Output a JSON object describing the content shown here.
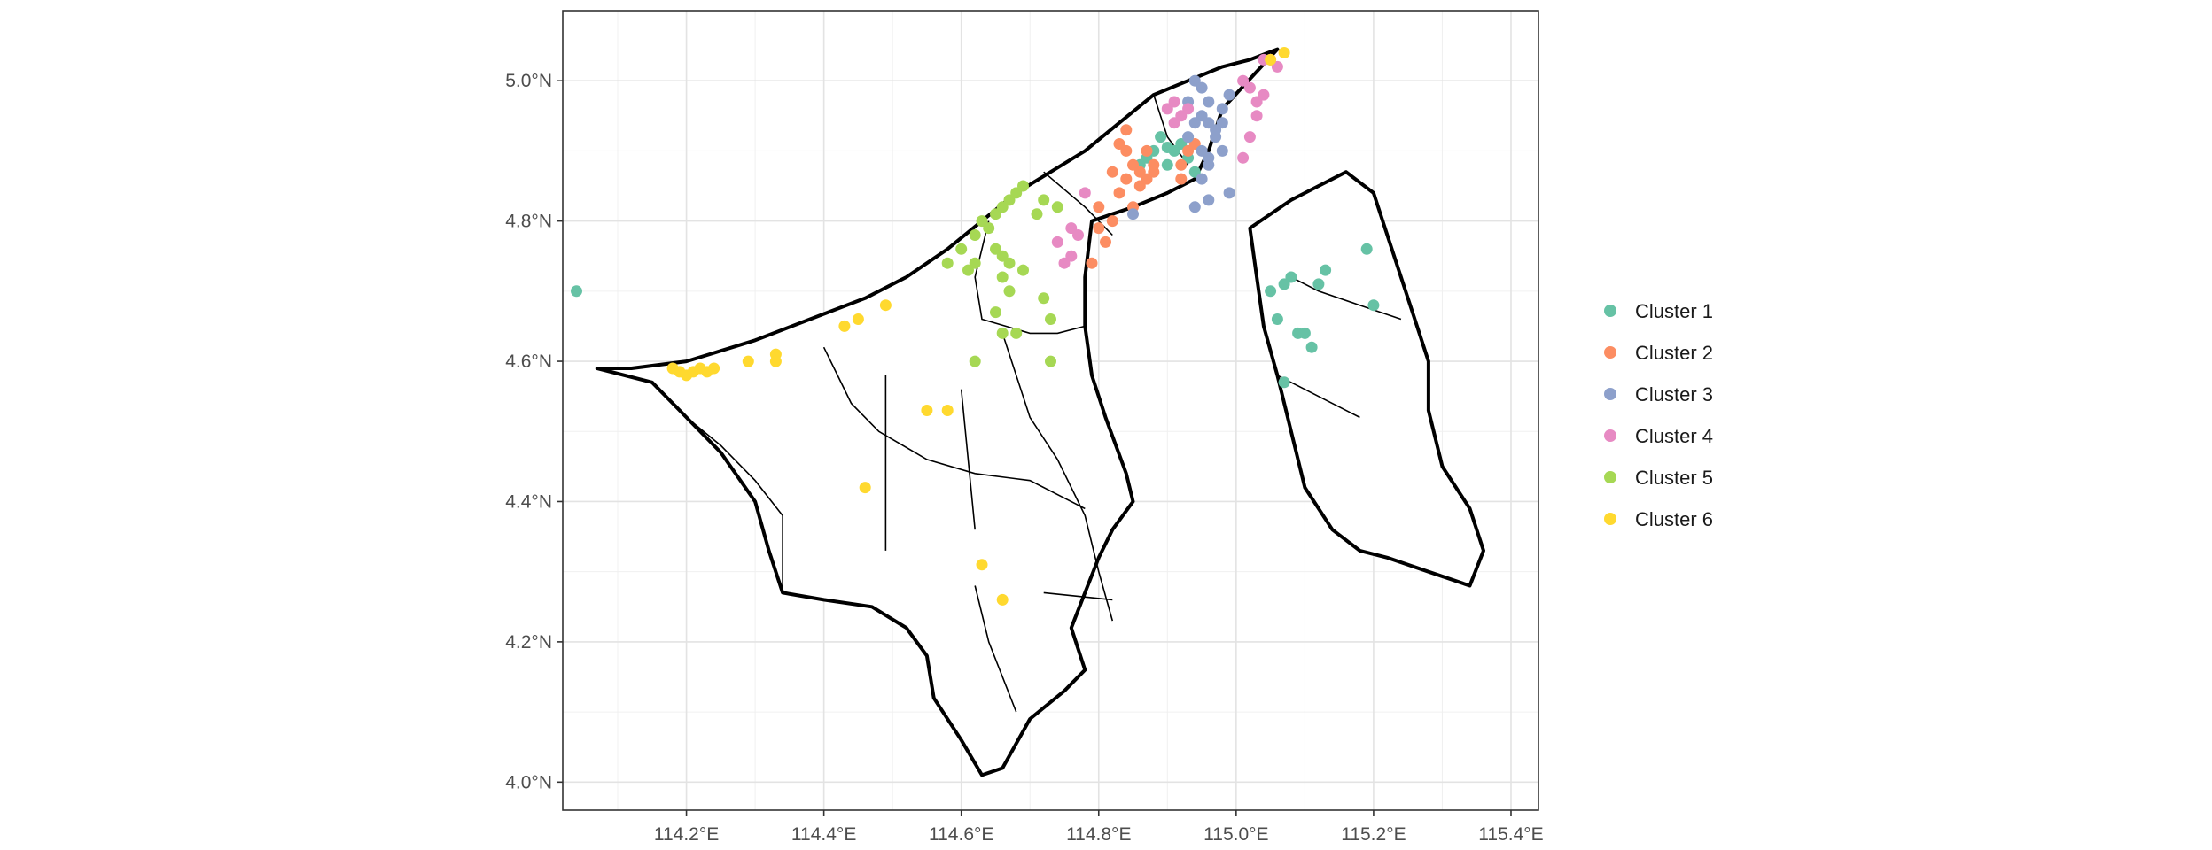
{
  "chart_data": {
    "type": "scatter",
    "title": "",
    "xlabel": "",
    "ylabel": "",
    "grid": true,
    "legend_position": "right",
    "xlim": [
      114.02,
      115.44
    ],
    "ylim": [
      3.96,
      5.1
    ],
    "x_ticks": [
      114.2,
      114.4,
      114.6,
      114.8,
      115.0,
      115.2,
      115.4
    ],
    "x_tick_labels": [
      "114.2°E",
      "114.4°E",
      "114.6°E",
      "114.8°E",
      "115.0°E",
      "115.2°E",
      "115.4°E"
    ],
    "y_ticks": [
      4.0,
      4.2,
      4.4,
      4.6,
      4.8,
      5.0
    ],
    "y_tick_labels": [
      "4.0°N",
      "4.2°N",
      "4.4°N",
      "4.6°N",
      "4.8°N",
      "5.0°N"
    ],
    "series": [
      {
        "name": "Cluster 1",
        "color": "#66c2a5",
        "points": [
          [
            114.88,
            4.9
          ],
          [
            114.89,
            4.92
          ],
          [
            114.9,
            4.88
          ],
          [
            114.91,
            4.9
          ],
          [
            114.92,
            4.91
          ],
          [
            114.93,
            4.89
          ],
          [
            114.87,
            4.89
          ],
          [
            114.9,
            4.905
          ],
          [
            114.94,
            4.87
          ],
          [
            114.86,
            4.88
          ],
          [
            114.04,
            4.7
          ],
          [
            115.05,
            4.7
          ],
          [
            115.07,
            4.71
          ],
          [
            115.08,
            4.72
          ],
          [
            115.06,
            4.66
          ],
          [
            115.1,
            4.64
          ],
          [
            115.11,
            4.62
          ],
          [
            115.13,
            4.73
          ],
          [
            115.12,
            4.71
          ],
          [
            115.19,
            4.76
          ],
          [
            115.2,
            4.68
          ],
          [
            115.07,
            4.57
          ],
          [
            115.09,
            4.64
          ]
        ]
      },
      {
        "name": "Cluster 2",
        "color": "#fc8d62",
        "points": [
          [
            114.83,
            4.91
          ],
          [
            114.84,
            4.9
          ],
          [
            114.85,
            4.88
          ],
          [
            114.86,
            4.87
          ],
          [
            114.84,
            4.86
          ],
          [
            114.83,
            4.84
          ],
          [
            114.85,
            4.82
          ],
          [
            114.86,
            4.85
          ],
          [
            114.87,
            4.86
          ],
          [
            114.88,
            4.88
          ],
          [
            114.82,
            4.87
          ],
          [
            114.8,
            4.82
          ],
          [
            114.82,
            4.8
          ],
          [
            114.81,
            4.77
          ],
          [
            114.79,
            4.74
          ],
          [
            114.8,
            4.79
          ],
          [
            114.84,
            4.93
          ],
          [
            114.92,
            4.86
          ],
          [
            114.93,
            4.9
          ],
          [
            114.94,
            4.91
          ],
          [
            114.92,
            4.88
          ],
          [
            114.88,
            4.87
          ],
          [
            114.87,
            4.9
          ]
        ]
      },
      {
        "name": "Cluster 3",
        "color": "#8da0cb",
        "points": [
          [
            114.94,
            5.0
          ],
          [
            114.95,
            4.99
          ],
          [
            114.96,
            4.97
          ],
          [
            114.95,
            4.95
          ],
          [
            114.96,
            4.94
          ],
          [
            114.97,
            4.93
          ],
          [
            114.98,
            4.96
          ],
          [
            114.99,
            4.98
          ],
          [
            114.94,
            4.94
          ],
          [
            114.93,
            4.92
          ],
          [
            114.95,
            4.9
          ],
          [
            114.96,
            4.89
          ],
          [
            114.97,
            4.92
          ],
          [
            114.98,
            4.9
          ],
          [
            114.96,
            4.88
          ],
          [
            114.95,
            4.86
          ],
          [
            114.94,
            4.82
          ],
          [
            114.96,
            4.83
          ],
          [
            114.99,
            4.84
          ],
          [
            114.85,
            4.81
          ],
          [
            114.98,
            4.94
          ],
          [
            114.93,
            4.97
          ]
        ]
      },
      {
        "name": "Cluster 4",
        "color": "#e78ac3",
        "points": [
          [
            114.9,
            4.96
          ],
          [
            114.91,
            4.97
          ],
          [
            114.92,
            4.95
          ],
          [
            114.93,
            4.96
          ],
          [
            114.91,
            4.94
          ],
          [
            115.02,
            4.99
          ],
          [
            115.03,
            4.97
          ],
          [
            115.04,
            4.98
          ],
          [
            115.01,
            5.0
          ],
          [
            115.03,
            4.95
          ],
          [
            115.02,
            4.92
          ],
          [
            115.01,
            4.89
          ],
          [
            115.05,
            5.03
          ],
          [
            115.06,
            5.02
          ],
          [
            115.04,
            5.03
          ],
          [
            114.76,
            4.79
          ],
          [
            114.77,
            4.78
          ],
          [
            114.74,
            4.77
          ],
          [
            114.75,
            4.74
          ],
          [
            114.76,
            4.75
          ],
          [
            114.78,
            4.84
          ]
        ]
      },
      {
        "name": "Cluster 5",
        "color": "#a6d854",
        "points": [
          [
            114.58,
            4.74
          ],
          [
            114.6,
            4.76
          ],
          [
            114.62,
            4.78
          ],
          [
            114.63,
            4.8
          ],
          [
            114.65,
            4.81
          ],
          [
            114.66,
            4.82
          ],
          [
            114.67,
            4.83
          ],
          [
            114.68,
            4.84
          ],
          [
            114.69,
            4.85
          ],
          [
            114.64,
            4.79
          ],
          [
            114.61,
            4.73
          ],
          [
            114.62,
            4.74
          ],
          [
            114.65,
            4.76
          ],
          [
            114.66,
            4.75
          ],
          [
            114.67,
            4.74
          ],
          [
            114.66,
            4.72
          ],
          [
            114.67,
            4.7
          ],
          [
            114.69,
            4.73
          ],
          [
            114.71,
            4.81
          ],
          [
            114.72,
            4.83
          ],
          [
            114.74,
            4.82
          ],
          [
            114.65,
            4.67
          ],
          [
            114.66,
            4.64
          ],
          [
            114.68,
            4.64
          ],
          [
            114.72,
            4.69
          ],
          [
            114.73,
            4.66
          ],
          [
            114.73,
            4.6
          ],
          [
            114.62,
            4.6
          ]
        ]
      },
      {
        "name": "Cluster 6",
        "color": "#ffd92f",
        "points": [
          [
            114.18,
            4.59
          ],
          [
            114.19,
            4.585
          ],
          [
            114.2,
            4.58
          ],
          [
            114.21,
            4.585
          ],
          [
            114.22,
            4.59
          ],
          [
            114.23,
            4.585
          ],
          [
            114.24,
            4.59
          ],
          [
            114.29,
            4.6
          ],
          [
            114.33,
            4.61
          ],
          [
            114.33,
            4.6
          ],
          [
            114.43,
            4.65
          ],
          [
            114.45,
            4.66
          ],
          [
            114.49,
            4.68
          ],
          [
            114.55,
            4.53
          ],
          [
            114.58,
            4.53
          ],
          [
            114.46,
            4.42
          ],
          [
            114.63,
            4.31
          ],
          [
            114.66,
            4.26
          ],
          [
            115.05,
            5.03
          ],
          [
            115.07,
            5.04
          ]
        ]
      }
    ],
    "legend": [
      "Cluster 1",
      "Cluster 2",
      "Cluster 3",
      "Cluster 4",
      "Cluster 5",
      "Cluster 6"
    ],
    "basemap": {
      "outline_color": "#000000",
      "inner_boundary_color": "#000000",
      "subdistrict_color": "#bdbdbd",
      "west_mainland": [
        [
          114.07,
          4.59
        ],
        [
          114.12,
          4.59
        ],
        [
          114.2,
          4.6
        ],
        [
          114.3,
          4.63
        ],
        [
          114.38,
          4.66
        ],
        [
          114.46,
          4.69
        ],
        [
          114.52,
          4.72
        ],
        [
          114.58,
          4.76
        ],
        [
          114.63,
          4.8
        ],
        [
          114.68,
          4.84
        ],
        [
          114.73,
          4.87
        ],
        [
          114.78,
          4.9
        ],
        [
          114.83,
          4.94
        ],
        [
          114.88,
          4.98
        ],
        [
          114.93,
          5.0
        ],
        [
          114.98,
          5.02
        ],
        [
          115.02,
          5.03
        ],
        [
          115.06,
          5.045
        ],
        [
          114.98,
          4.96
        ],
        [
          114.96,
          4.9
        ],
        [
          114.94,
          4.86
        ],
        [
          114.9,
          4.84
        ],
        [
          114.85,
          4.82
        ],
        [
          114.82,
          4.81
        ],
        [
          114.79,
          4.8
        ],
        [
          114.78,
          4.72
        ],
        [
          114.78,
          4.65
        ],
        [
          114.79,
          4.58
        ],
        [
          114.81,
          4.52
        ],
        [
          114.84,
          4.44
        ],
        [
          114.85,
          4.4
        ],
        [
          114.82,
          4.36
        ],
        [
          114.8,
          4.32
        ],
        [
          114.78,
          4.27
        ],
        [
          114.76,
          4.22
        ],
        [
          114.78,
          4.16
        ],
        [
          114.75,
          4.13
        ],
        [
          114.7,
          4.09
        ],
        [
          114.66,
          4.02
        ],
        [
          114.63,
          4.01
        ],
        [
          114.6,
          4.06
        ],
        [
          114.56,
          4.12
        ],
        [
          114.55,
          4.18
        ],
        [
          114.52,
          4.22
        ],
        [
          114.47,
          4.25
        ],
        [
          114.4,
          4.26
        ],
        [
          114.34,
          4.27
        ],
        [
          114.32,
          4.33
        ],
        [
          114.3,
          4.4
        ],
        [
          114.25,
          4.47
        ],
        [
          114.2,
          4.52
        ],
        [
          114.15,
          4.57
        ],
        [
          114.07,
          4.59
        ]
      ],
      "temburong": [
        [
          115.02,
          4.79
        ],
        [
          115.08,
          4.83
        ],
        [
          115.12,
          4.85
        ],
        [
          115.16,
          4.87
        ],
        [
          115.2,
          4.84
        ],
        [
          115.22,
          4.78
        ],
        [
          115.24,
          4.72
        ],
        [
          115.26,
          4.66
        ],
        [
          115.28,
          4.6
        ],
        [
          115.28,
          4.53
        ],
        [
          115.3,
          4.45
        ],
        [
          115.34,
          4.39
        ],
        [
          115.36,
          4.33
        ],
        [
          115.34,
          4.28
        ],
        [
          115.28,
          4.3
        ],
        [
          115.22,
          4.32
        ],
        [
          115.18,
          4.33
        ],
        [
          115.14,
          4.36
        ],
        [
          115.1,
          4.42
        ],
        [
          115.08,
          4.5
        ],
        [
          115.06,
          4.58
        ],
        [
          115.04,
          4.65
        ],
        [
          115.03,
          4.72
        ],
        [
          115.02,
          4.79
        ]
      ],
      "district_lines": [
        [
          [
            114.64,
            4.8
          ],
          [
            114.62,
            4.72
          ],
          [
            114.63,
            4.66
          ],
          [
            114.7,
            4.64
          ],
          [
            114.74,
            4.64
          ],
          [
            114.78,
            4.65
          ]
        ],
        [
          [
            114.66,
            4.64
          ],
          [
            114.7,
            4.52
          ],
          [
            114.74,
            4.46
          ],
          [
            114.78,
            4.38
          ],
          [
            114.8,
            4.3
          ],
          [
            114.82,
            4.23
          ]
        ],
        [
          [
            114.4,
            4.62
          ],
          [
            114.42,
            4.58
          ],
          [
            114.44,
            4.54
          ],
          [
            114.48,
            4.5
          ],
          [
            114.55,
            4.46
          ],
          [
            114.62,
            4.44
          ],
          [
            114.7,
            4.43
          ],
          [
            114.78,
            4.39
          ]
        ],
        [
          [
            114.2,
            4.52
          ],
          [
            114.25,
            4.48
          ],
          [
            114.3,
            4.43
          ],
          [
            114.34,
            4.38
          ],
          [
            114.34,
            4.27
          ]
        ],
        [
          [
            114.49,
            4.58
          ],
          [
            114.49,
            4.33
          ]
        ],
        [
          [
            114.6,
            4.56
          ],
          [
            114.62,
            4.36
          ]
        ],
        [
          [
            114.62,
            4.28
          ],
          [
            114.64,
            4.2
          ],
          [
            114.68,
            4.1
          ]
        ],
        [
          [
            114.72,
            4.27
          ],
          [
            114.82,
            4.26
          ]
        ],
        [
          [
            114.72,
            4.87
          ],
          [
            114.78,
            4.82
          ],
          [
            114.82,
            4.78
          ]
        ],
        [
          [
            114.88,
            4.98
          ],
          [
            114.9,
            4.92
          ],
          [
            114.93,
            4.88
          ]
        ],
        [
          [
            115.08,
            4.72
          ],
          [
            115.12,
            4.7
          ],
          [
            115.18,
            4.68
          ],
          [
            115.24,
            4.66
          ]
        ],
        [
          [
            115.06,
            4.58
          ],
          [
            115.12,
            4.55
          ],
          [
            115.18,
            4.52
          ]
        ]
      ]
    }
  }
}
